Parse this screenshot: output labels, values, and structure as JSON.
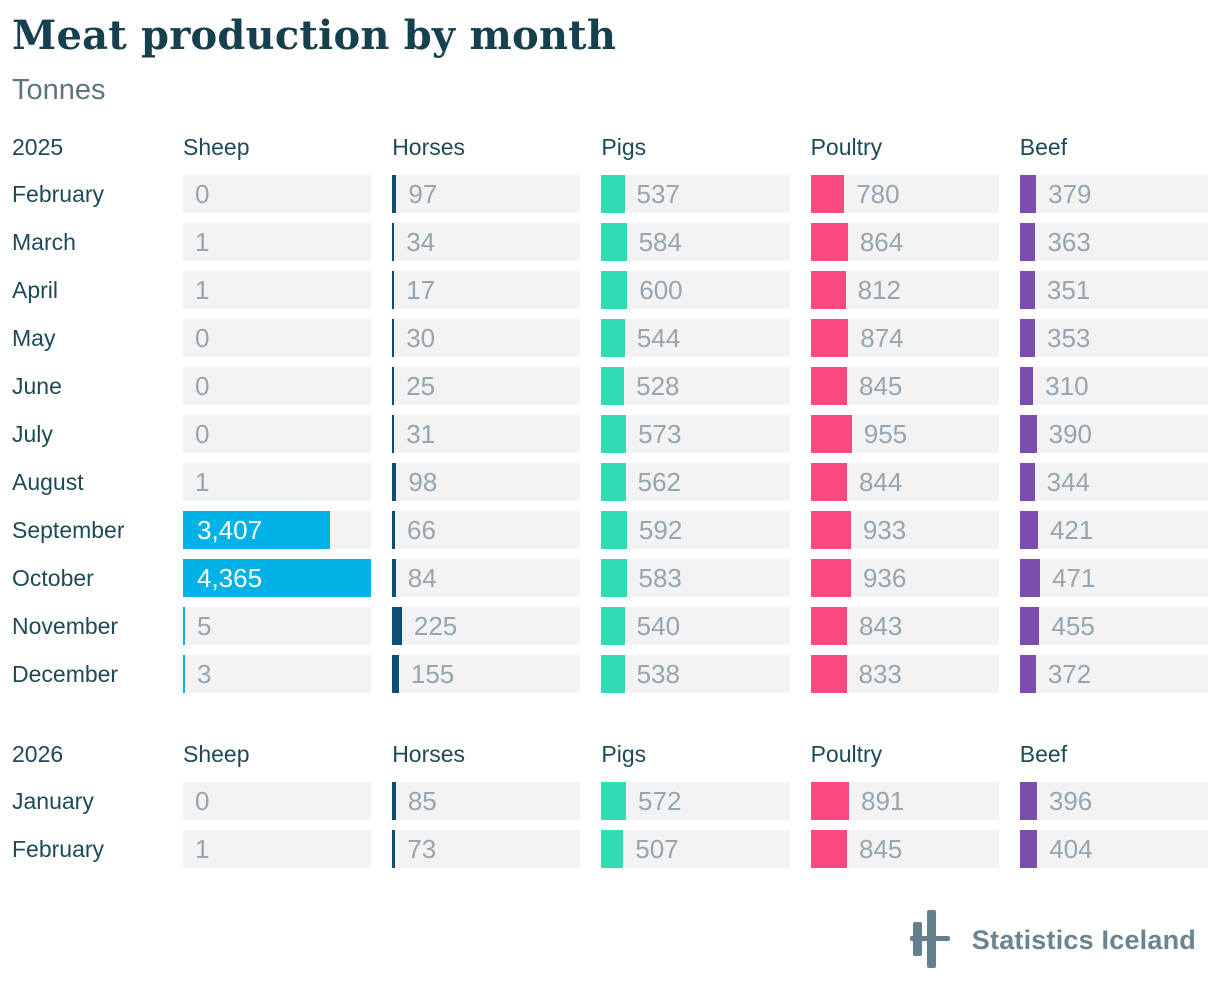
{
  "title": "Meat production by month",
  "subtitle": "Tonnes",
  "footer": {
    "logo_text": "Statistics Iceland",
    "logo_icon": "statistics-iceland-mark"
  },
  "colors": {
    "sheep": "#00b2e5",
    "horses": "#0d4e75",
    "pigs": "#31dcb4",
    "poultry": "#f9497e",
    "beef": "#7b4eae",
    "track": "#f3f3f3",
    "value_text": "#96a5af",
    "value_text_inside": "#ffffff",
    "heading_text": "#1d4a57",
    "title_text": "#16404d",
    "subtitle_text": "#5d757f",
    "logo": "#64808c"
  },
  "chart_data": {
    "type": "bar",
    "title": "Meat production by month",
    "ylabel": "Tonnes",
    "unit": "Tonnes",
    "orientation": "horizontal",
    "max_scale": 4365,
    "legend_position": "column-headers",
    "grid": false,
    "columns": [
      "Sheep",
      "Horses",
      "Pigs",
      "Poultry",
      "Beef"
    ],
    "column_color_keys": [
      "sheep",
      "horses",
      "pigs",
      "poultry",
      "beef"
    ],
    "sections": [
      {
        "year": "2025",
        "rows": [
          {
            "month": "February",
            "values": [
              0,
              97,
              537,
              780,
              379
            ]
          },
          {
            "month": "March",
            "values": [
              1,
              34,
              584,
              864,
              363
            ]
          },
          {
            "month": "April",
            "values": [
              1,
              17,
              600,
              812,
              351
            ]
          },
          {
            "month": "May",
            "values": [
              0,
              30,
              544,
              874,
              353
            ]
          },
          {
            "month": "June",
            "values": [
              0,
              25,
              528,
              845,
              310
            ]
          },
          {
            "month": "July",
            "values": [
              0,
              31,
              573,
              955,
              390
            ]
          },
          {
            "month": "August",
            "values": [
              1,
              98,
              562,
              844,
              344
            ]
          },
          {
            "month": "September",
            "values": [
              3407,
              66,
              592,
              933,
              421
            ]
          },
          {
            "month": "October",
            "values": [
              4365,
              84,
              583,
              936,
              471
            ]
          },
          {
            "month": "November",
            "values": [
              5,
              225,
              540,
              843,
              455
            ]
          },
          {
            "month": "December",
            "values": [
              3,
              155,
              538,
              833,
              372
            ]
          }
        ]
      },
      {
        "year": "2026",
        "rows": [
          {
            "month": "January",
            "values": [
              0,
              85,
              572,
              891,
              396
            ]
          },
          {
            "month": "February",
            "values": [
              1,
              73,
              507,
              845,
              404
            ]
          }
        ]
      }
    ]
  }
}
